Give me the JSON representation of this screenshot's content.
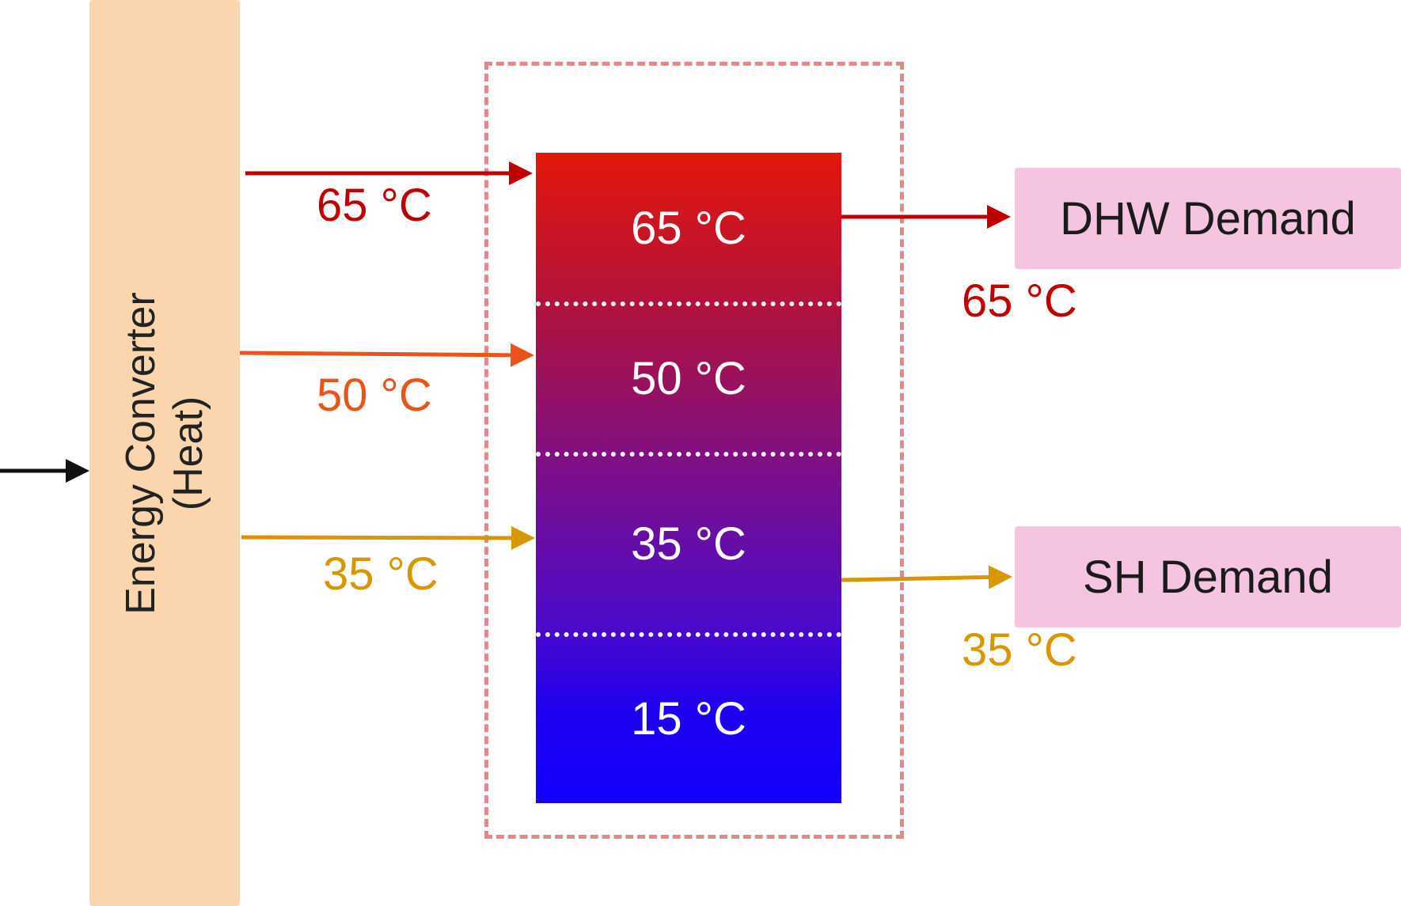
{
  "converter": {
    "line1": "Energy Converter",
    "line2": "(Heat)"
  },
  "storage": {
    "layers": [
      {
        "label": "65 °C"
      },
      {
        "label": "50 °C"
      },
      {
        "label": "35 °C"
      },
      {
        "label": "15 °C"
      }
    ]
  },
  "inputs": {
    "in_65": "65 °C",
    "in_50": "50 °C",
    "in_35": "35 °C"
  },
  "outputs": {
    "dhw_label": "DHW Demand",
    "dhw_temp": "65 °C",
    "sh_label": "SH Demand",
    "sh_temp": "35 °C"
  },
  "colors": {
    "hot": "#c00000",
    "medium": "#e8541b",
    "warm": "#d89600",
    "converter_fill": "#fbd5ad",
    "demand_fill": "#f4c4e0",
    "frame_dash": "#e08a8a"
  }
}
